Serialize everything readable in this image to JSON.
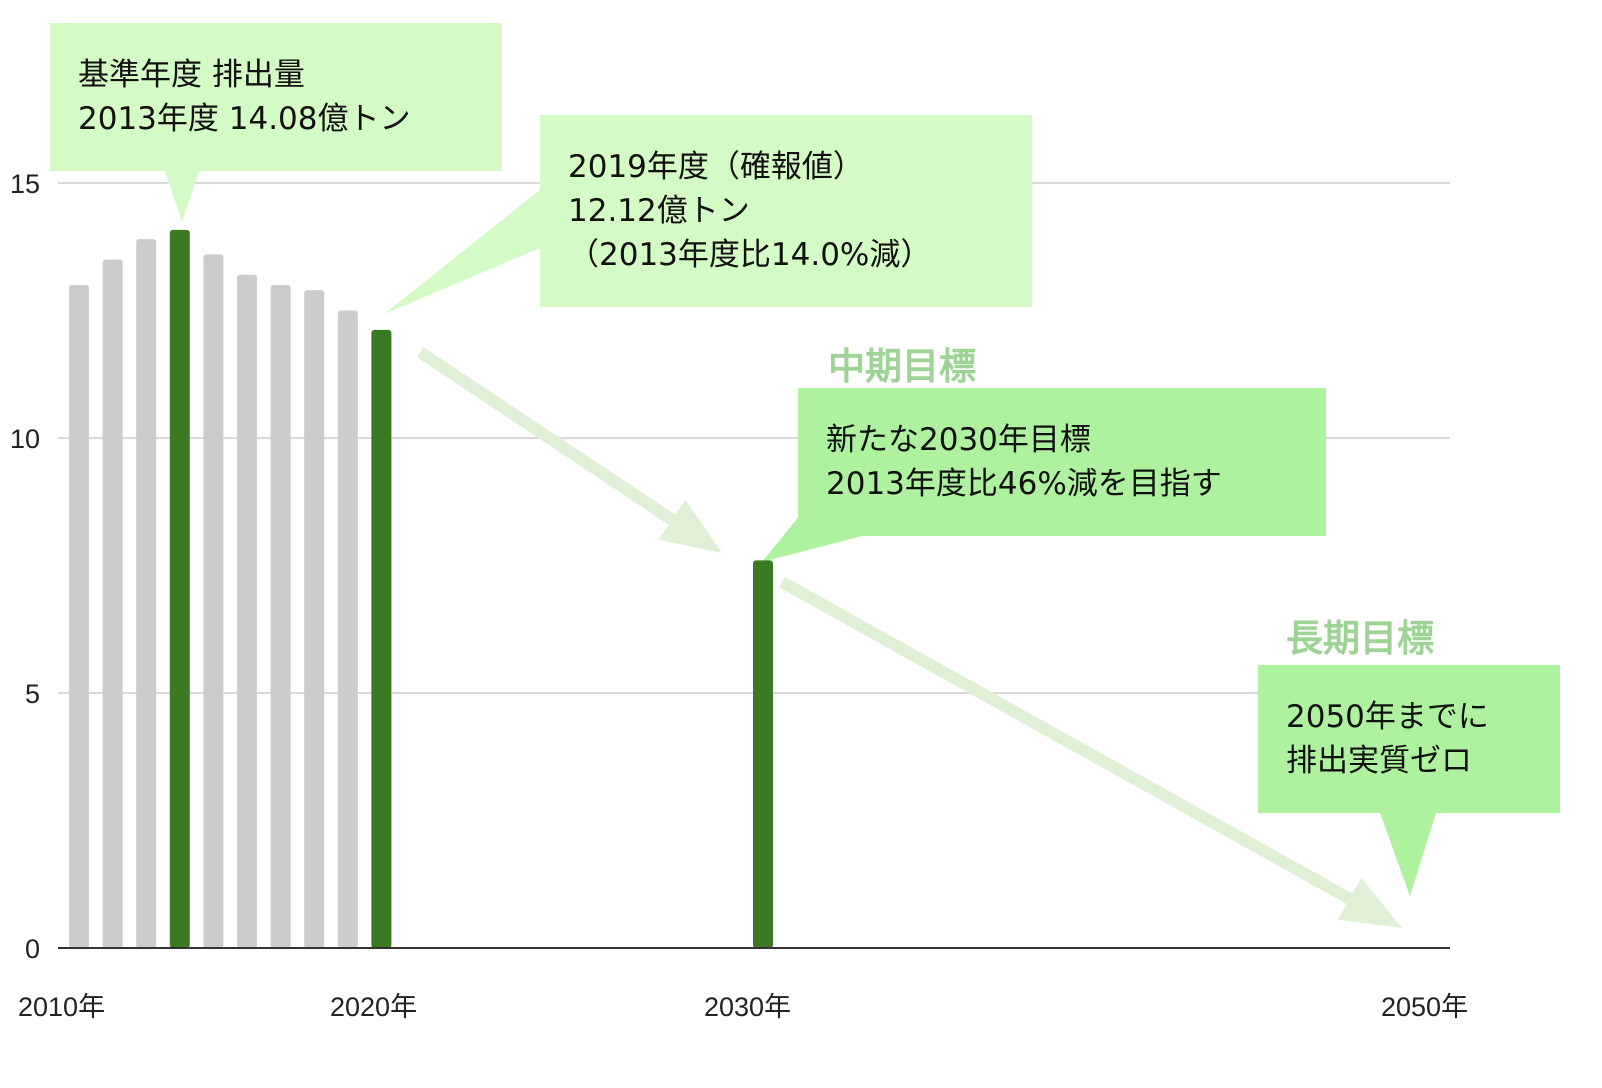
{
  "chart_data": {
    "type": "bar",
    "ylim": [
      0,
      15
    ],
    "yticks": [
      0,
      5,
      10,
      15
    ],
    "grid": true,
    "x_labels": [
      "2010年",
      "2020年",
      "2030年",
      "2050年"
    ],
    "series": [
      {
        "values": [
          {
            "year": 2010,
            "value": 13.0,
            "highlight": false
          },
          {
            "year": 2011,
            "value": 13.5,
            "highlight": false
          },
          {
            "year": 2012,
            "value": 13.9,
            "highlight": false
          },
          {
            "year": 2013,
            "value": 14.08,
            "highlight": true
          },
          {
            "year": 2014,
            "value": 13.6,
            "highlight": false
          },
          {
            "year": 2015,
            "value": 13.2,
            "highlight": false
          },
          {
            "year": 2016,
            "value": 13.0,
            "highlight": false
          },
          {
            "year": 2017,
            "value": 12.9,
            "highlight": false
          },
          {
            "year": 2018,
            "value": 12.5,
            "highlight": false
          },
          {
            "year": 2019,
            "value": 12.12,
            "highlight": true
          },
          {
            "year": 2030,
            "value": 7.6,
            "highlight": true
          }
        ]
      }
    ],
    "colors": {
      "actual": "#cccccc",
      "highlight": "#3a7a22",
      "arrow": "#dff0d6",
      "axis": "#333333",
      "grid": "#d9d9d9"
    }
  },
  "annotations": {
    "baseline": {
      "line1": "基準年度 排出量",
      "line2": "2013年度 14.08億トン"
    },
    "fy2019": {
      "line1": "2019年度（確報値）",
      "line2": "12.12億トン",
      "line3": "（2013年度比14.0%減）"
    },
    "mid_term": {
      "heading": "中期目標",
      "line1": "新たな2030年目標",
      "line2": "2013年度比46%減を目指す"
    },
    "long_term": {
      "heading": "長期目標",
      "line1": "2050年までに",
      "line2": "排出実質ゼロ"
    }
  }
}
